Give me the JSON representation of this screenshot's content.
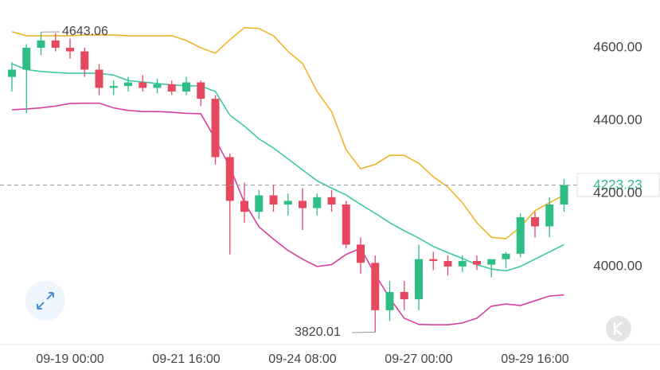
{
  "chart_data": {
    "type": "candlestick",
    "categories": [
      null,
      null,
      null,
      null,
      "09-19 00:00",
      null,
      null,
      null,
      null,
      null,
      null,
      null,
      "09-21 16:00",
      null,
      null,
      null,
      null,
      null,
      null,
      null,
      "09-24 08:00",
      null,
      null,
      null,
      null,
      null,
      null,
      null,
      "09-27 00:00",
      null,
      null,
      null,
      null,
      null,
      null,
      null,
      "09-29 16:00",
      null,
      null
    ],
    "open": [
      4520,
      4540,
      4600,
      4620,
      4600,
      4590,
      4540,
      4490,
      4495,
      4505,
      4490,
      4500,
      4480,
      4505,
      4460,
      4300,
      4180,
      4150,
      4195,
      4170,
      4180,
      4160,
      4190,
      4170,
      4060,
      4010,
      3880,
      3930,
      3910,
      4020,
      4015,
      4000,
      4015,
      4005,
      4020,
      4035,
      4135,
      4110,
      4170
    ],
    "high": [
      4560,
      4610,
      4643.06,
      4640,
      4625,
      4600,
      4555,
      4510,
      4520,
      4525,
      4515,
      4510,
      4520,
      4510,
      4470,
      4310,
      4230,
      4210,
      4225,
      4200,
      4215,
      4200,
      4210,
      4180,
      4080,
      4030,
      3960,
      3960,
      4060,
      4040,
      4030,
      4030,
      4030,
      4020,
      4040,
      4145,
      4150,
      4190,
      4240
    ],
    "low": [
      4480,
      4420,
      4580,
      4590,
      4570,
      4520,
      4470,
      4470,
      4480,
      4480,
      4475,
      4470,
      4470,
      4440,
      4280,
      4033,
      4120,
      4130,
      4150,
      4140,
      4100,
      4140,
      4150,
      4050,
      3980,
      3820.01,
      3850,
      3880,
      3880,
      3990,
      3975,
      3985,
      3990,
      3970,
      3995,
      4025,
      4080,
      4080,
      4150
    ],
    "close": [
      4540,
      4600,
      4620,
      4600,
      4590,
      4540,
      4490,
      4495,
      4505,
      4490,
      4500,
      4480,
      4505,
      4460,
      4300,
      4180,
      4150,
      4195,
      4170,
      4180,
      4160,
      4190,
      4170,
      4060,
      4010,
      3880,
      3930,
      3910,
      4020,
      4015,
      4000,
      4015,
      4005,
      4020,
      4035,
      4135,
      4110,
      4170,
      4223.23
    ],
    "up_color": "#2ebd85",
    "down_color": "#e5485f",
    "bands": [
      {
        "color": "#f0b429",
        "values": [
          4644,
          4633,
          4633,
          4633,
          4633,
          4635,
          4635,
          4635,
          4633,
          4633,
          4633,
          4633,
          4620,
          4600,
          4585,
          4622,
          4655,
          4653,
          4633,
          4590,
          4557,
          4480,
          4425,
          4320,
          4268,
          4280,
          4305,
          4305,
          4283,
          4246,
          4218,
          4175,
          4120,
          4080,
          4076,
          4109,
          4153,
          4175,
          4196
        ]
      },
      {
        "color": "#3cc9a0",
        "values": [
          4556,
          4540,
          4535,
          4532,
          4530,
          4530,
          4530,
          4525,
          4510,
          4506,
          4502,
          4498,
          4496,
          4495,
          4480,
          4415,
          4385,
          4350,
          4325,
          4295,
          4265,
          4235,
          4215,
          4196,
          4170,
          4146,
          4120,
          4098,
          4078,
          4055,
          4038,
          4022,
          4005,
          3993,
          3988,
          4000,
          4020,
          4040,
          4060
        ]
      },
      {
        "color": "#d6409f",
        "values": [
          4430,
          4432,
          4435,
          4440,
          4447,
          4448,
          4448,
          4435,
          4428,
          4425,
          4425,
          4423,
          4420,
          4419,
          4349,
          4273,
          4175,
          4109,
          4075,
          4044,
          4020,
          4000,
          4005,
          4033,
          4050,
          3978,
          3913,
          3858,
          3841,
          3840,
          3840,
          3845,
          3858,
          3891,
          3897,
          3893,
          3906,
          3919,
          3922
        ]
      }
    ],
    "ylim": [
      3788,
      4731
    ],
    "yticks": [
      {
        "value": 4000,
        "label": "4000.00"
      },
      {
        "value": 4200,
        "label": "4200.00"
      },
      {
        "value": 4400,
        "label": "4400.00"
      },
      {
        "value": 4600,
        "label": "4600.00"
      }
    ],
    "grid": false,
    "high_label": 4643.06,
    "low_label": 3820.01,
    "last_price": 4223.23
  }
}
